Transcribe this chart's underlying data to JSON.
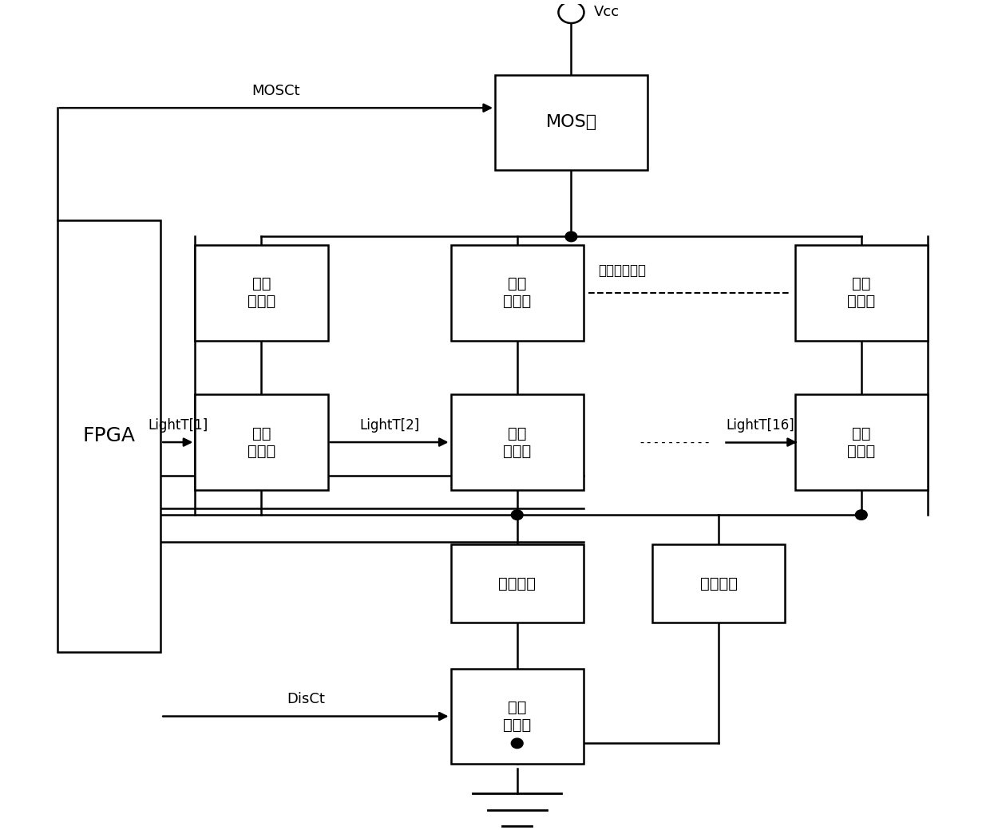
{
  "bg": "#ffffff",
  "lc": "#000000",
  "figsize": [
    12.4,
    10.5
  ],
  "dpi": 100,
  "boxes": {
    "FPGA": [
      0.055,
      0.22,
      0.105,
      0.52
    ],
    "MOS": [
      0.5,
      0.8,
      0.155,
      0.115
    ],
    "IR1": [
      0.195,
      0.595,
      0.135,
      0.115
    ],
    "IR2": [
      0.455,
      0.595,
      0.135,
      0.115
    ],
    "IR3": [
      0.805,
      0.595,
      0.135,
      0.115
    ],
    "TR1": [
      0.195,
      0.415,
      0.135,
      0.115
    ],
    "TR2": [
      0.455,
      0.415,
      0.135,
      0.115
    ],
    "TR3": [
      0.805,
      0.415,
      0.135,
      0.115
    ],
    "RR": [
      0.455,
      0.255,
      0.135,
      0.095
    ],
    "RP": [
      0.66,
      0.255,
      0.135,
      0.095
    ],
    "DIST": [
      0.455,
      0.085,
      0.135,
      0.115
    ]
  },
  "labels": {
    "FPGA": "FPGA",
    "MOS": "MOS管",
    "IR1": "红外\n发射管",
    "IR2": "红外\n发射管",
    "IR3": "红外\n发射管",
    "TR1": "导通\n三极管",
    "TR2": "导通\n三极管",
    "TR3": "导通\n三极管",
    "RR": "远端电阻",
    "RP": "近端电阻",
    "DIST": "距离\n三极管"
  },
  "fontsizes": {
    "FPGA": 18,
    "MOS": 16,
    "IR1": 14,
    "IR2": 14,
    "IR3": 14,
    "TR1": 14,
    "TR2": 14,
    "TR3": 14,
    "RR": 14,
    "RP": 14,
    "DIST": 14
  }
}
